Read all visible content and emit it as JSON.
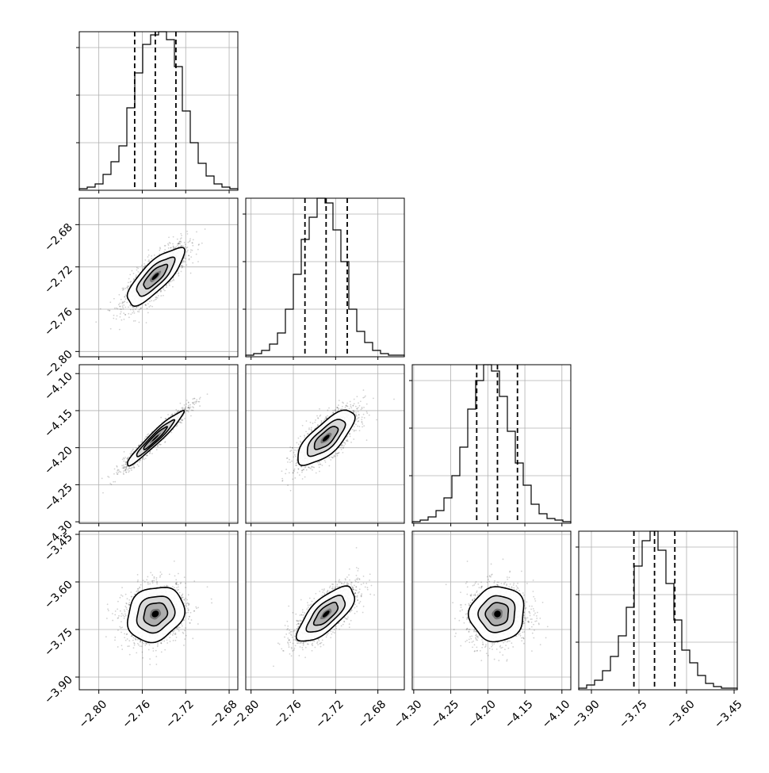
{
  "chart_data": {
    "type": "corner",
    "grid": true,
    "ticks": [
      {
        "values": [
          -2.8,
          -2.76,
          -2.72,
          -2.68
        ],
        "labels": [
          "−2.80",
          "−2.76",
          "−2.72",
          "−2.68"
        ]
      },
      {
        "values": [
          -2.8,
          -2.76,
          -2.72,
          -2.68
        ],
        "labels": [
          "−2.80",
          "−2.76",
          "−2.72",
          "−2.68"
        ]
      },
      {
        "values": [
          -4.3,
          -4.25,
          -4.2,
          -4.15,
          -4.1
        ],
        "labels": [
          "−4.30",
          "−4.25",
          "−4.20",
          "−4.15",
          "−4.10"
        ]
      },
      {
        "values": [
          -3.9,
          -3.75,
          -3.6,
          -3.45
        ],
        "labels": [
          "−3.90",
          "−3.75",
          "−3.60",
          "−3.45"
        ]
      }
    ],
    "params": [
      {
        "range": [
          -2.818,
          -2.672
        ],
        "hist_edges_start": -2.818,
        "hist_bin_width": 0.0073,
        "hist_counts": [
          1,
          2,
          4,
          10,
          18,
          28,
          52,
          74,
          92,
          98,
          100,
          95,
          78,
          50,
          30,
          17,
          9,
          4,
          2,
          1
        ],
        "quantiles": [
          -2.767,
          -2.748,
          -2.729
        ],
        "hist_yticks": [
          30,
          60,
          90
        ]
      },
      {
        "range": [
          -2.805,
          -2.655
        ],
        "hist_edges_start": -2.805,
        "hist_bin_width": 0.0075,
        "hist_counts": [
          1,
          2,
          4,
          8,
          15,
          30,
          52,
          74,
          88,
          100,
          97,
          80,
          60,
          30,
          16,
          9,
          4,
          2,
          1,
          1
        ],
        "quantiles": [
          -2.749,
          -2.729,
          -2.709
        ],
        "hist_yticks": [
          30,
          60,
          90
        ]
      },
      {
        "range": [
          -4.302,
          -4.088
        ],
        "hist_edges_start": -4.302,
        "hist_bin_width": 0.0107,
        "hist_counts": [
          1,
          2,
          4,
          8,
          16,
          30,
          48,
          72,
          90,
          100,
          96,
          80,
          58,
          38,
          24,
          12,
          6,
          3,
          2,
          1
        ],
        "quantiles": [
          -4.215,
          -4.187,
          -4.16
        ],
        "hist_yticks": [
          30,
          60,
          90
        ]
      },
      {
        "range": [
          -3.94,
          -3.44
        ],
        "hist_edges_start": -3.94,
        "hist_bin_width": 0.025,
        "hist_counts": [
          1,
          3,
          6,
          12,
          21,
          34,
          52,
          78,
          94,
          100,
          88,
          67,
          44,
          25,
          17,
          9,
          4,
          2,
          1,
          1
        ],
        "quantiles": [
          -3.766,
          -3.701,
          -3.637
        ],
        "hist_yticks": [
          30,
          60,
          90
        ]
      }
    ],
    "pairs": [
      {
        "row": 1,
        "col": 0,
        "center": [
          -2.748,
          -2.729
        ],
        "sigma": [
          0.0145,
          0.015
        ],
        "correlation": 0.79
      },
      {
        "row": 2,
        "col": 0,
        "center": [
          -2.748,
          -4.187
        ],
        "sigma": [
          0.0145,
          0.0205
        ],
        "correlation": 0.96
      },
      {
        "row": 2,
        "col": 1,
        "center": [
          -2.729,
          -4.187
        ],
        "sigma": [
          0.015,
          0.0205
        ],
        "correlation": 0.74
      },
      {
        "row": 3,
        "col": 0,
        "center": [
          -2.748,
          -3.701
        ],
        "sigma": [
          0.0145,
          0.048
        ],
        "correlation": 0.18
      },
      {
        "row": 3,
        "col": 1,
        "center": [
          -2.729,
          -3.701
        ],
        "sigma": [
          0.015,
          0.048
        ],
        "correlation": 0.72
      },
      {
        "row": 3,
        "col": 2,
        "center": [
          -4.187,
          -3.701
        ],
        "sigma": [
          0.0205,
          0.048
        ],
        "correlation": 0.05
      }
    ]
  }
}
